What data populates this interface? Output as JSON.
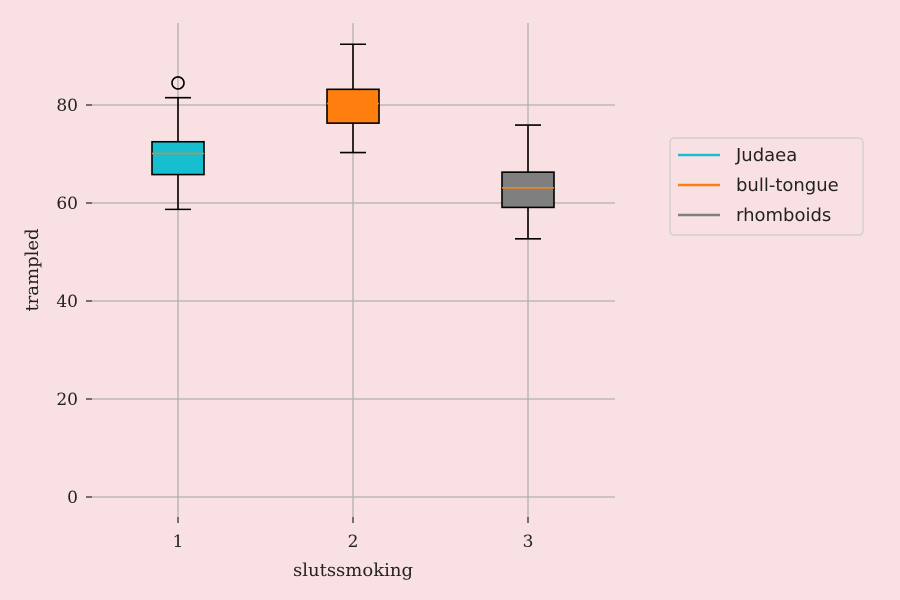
{
  "chart_data": {
    "type": "box",
    "title": "",
    "xlabel": "slutssmoking",
    "ylabel": "trampled",
    "categories": [
      "1",
      "2",
      "3"
    ],
    "ylim": [
      -4,
      97
    ],
    "yticks": [
      0,
      20,
      40,
      60,
      80
    ],
    "grid": true,
    "legend_position": "right",
    "series": [
      {
        "name": "Judaea",
        "color": "#17becf",
        "whisker_low": 58.7,
        "q1": 65.8,
        "median": 70.1,
        "q3": 72.5,
        "whisker_high": 81.5,
        "outliers": [
          84.5
        ]
      },
      {
        "name": "bull-tongue",
        "color": "#ff7f0e",
        "whisker_low": 70.3,
        "q1": 76.3,
        "median": 80.3,
        "q3": 83.2,
        "whisker_high": 92.4,
        "outliers": []
      },
      {
        "name": "rhomboids",
        "color": "#7f7f7f",
        "whisker_low": 52.7,
        "q1": 59.1,
        "median": 63.1,
        "q3": 66.3,
        "whisker_high": 75.9,
        "outliers": []
      }
    ]
  }
}
